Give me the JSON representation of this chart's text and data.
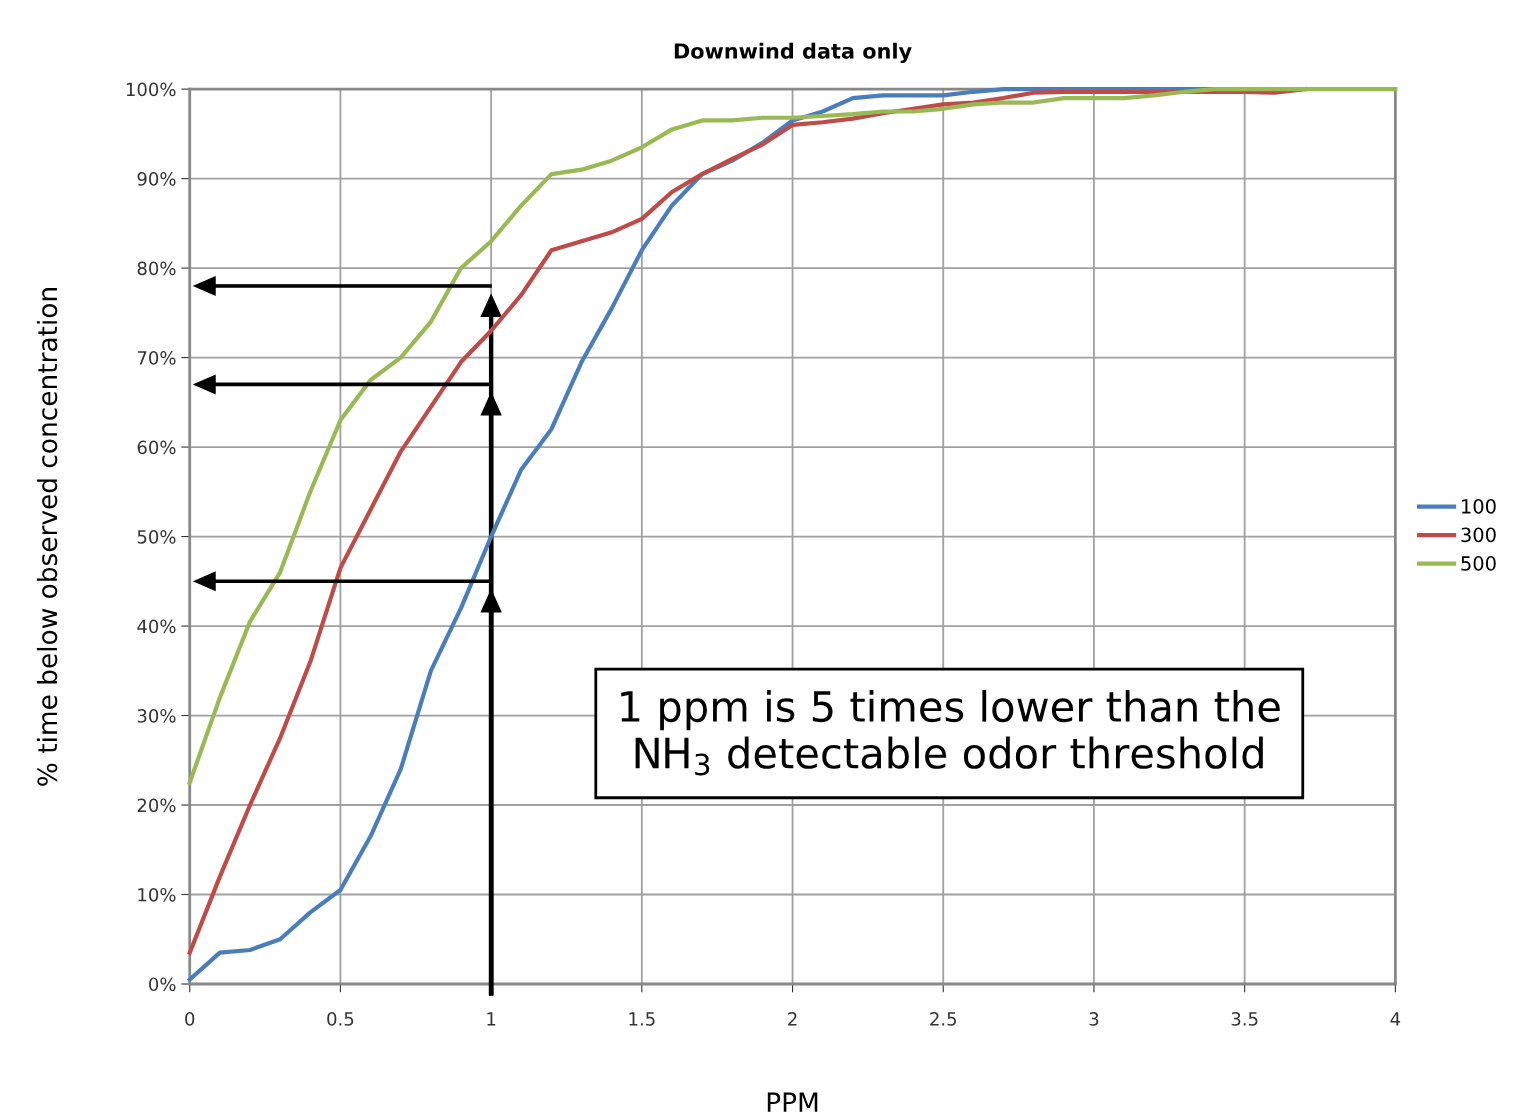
{
  "chart_data": {
    "type": "line",
    "title": "Downwind data only",
    "xlabel": "PPM",
    "ylabel": "% time below observed concentration",
    "x": [
      0,
      0.1,
      0.2,
      0.3,
      0.4,
      0.5,
      0.6,
      0.7,
      0.8,
      0.9,
      1,
      1.1,
      1.2,
      1.3,
      1.4,
      1.5,
      1.6,
      1.7,
      1.8,
      1.9,
      2,
      2.1,
      2.2,
      2.3,
      2.4,
      2.5,
      2.6,
      2.7,
      2.8,
      2.9,
      3,
      3.1,
      3.2,
      3.3,
      3.4,
      3.5,
      3.6,
      3.7,
      3.8,
      3.9,
      4
    ],
    "series": [
      {
        "name": "100",
        "color": "#4a7ebb",
        "values": [
          0.5,
          3.5,
          3.8,
          5,
          8,
          10.5,
          16.5,
          24,
          35,
          42,
          50,
          57.5,
          62,
          69.5,
          75.5,
          82,
          87,
          90.5,
          92,
          94,
          96.5,
          97.5,
          99,
          99.3,
          99.3,
          99.3,
          99.7,
          100,
          100,
          100,
          100,
          100,
          100,
          100,
          100,
          100,
          null,
          null,
          null,
          null,
          null
        ]
      },
      {
        "name": "300",
        "color": "#be4b48",
        "values": [
          3.5,
          12,
          20,
          27.5,
          36,
          46.5,
          53,
          59.5,
          64.5,
          69.5,
          73,
          77,
          82,
          83,
          84,
          85.5,
          88.5,
          90.5,
          92.2,
          93.8,
          96,
          96.3,
          96.7,
          97.3,
          97.8,
          98.3,
          98.5,
          99,
          99.6,
          99.7,
          99.7,
          99.7,
          99.7,
          99.7,
          99.7,
          99.7,
          99.6,
          100,
          null,
          null,
          null
        ]
      },
      {
        "name": "500",
        "color": "#98b954",
        "values": [
          22.5,
          32,
          40.5,
          46,
          55,
          63,
          67.5,
          70,
          74,
          80,
          83,
          87,
          90.5,
          91,
          92,
          93.5,
          95.5,
          96.5,
          96.5,
          96.8,
          96.8,
          97,
          97.2,
          97.5,
          97.5,
          97.8,
          98.3,
          98.5,
          98.5,
          99,
          99,
          99,
          99.3,
          99.7,
          100,
          100,
          100,
          100,
          100,
          100,
          100
        ]
      }
    ],
    "xlim": [
      0,
      4
    ],
    "xticks": [
      0,
      0.5,
      1,
      1.5,
      2,
      2.5,
      3,
      3.5,
      4
    ],
    "ylim": [
      0,
      100
    ],
    "yticks": [
      {
        "value": 0,
        "label": "0%"
      },
      {
        "value": 10,
        "label": "10%"
      },
      {
        "value": 20,
        "label": "20%"
      },
      {
        "value": 30,
        "label": "30%"
      },
      {
        "value": 40,
        "label": "40%"
      },
      {
        "value": 50,
        "label": "50%"
      },
      {
        "value": 60,
        "label": "60%"
      },
      {
        "value": 70,
        "label": "70%"
      },
      {
        "value": 80,
        "label": "80%"
      },
      {
        "value": 90,
        "label": "90%"
      },
      {
        "value": 100,
        "label": "100%"
      }
    ],
    "grid": true,
    "legend": "right",
    "marker": "none",
    "line_style": "solid",
    "annotations": [
      "1 ppm is 5 times lower than the\nNH$_{3}$ detectable odor threshold"
    ]
  }
}
